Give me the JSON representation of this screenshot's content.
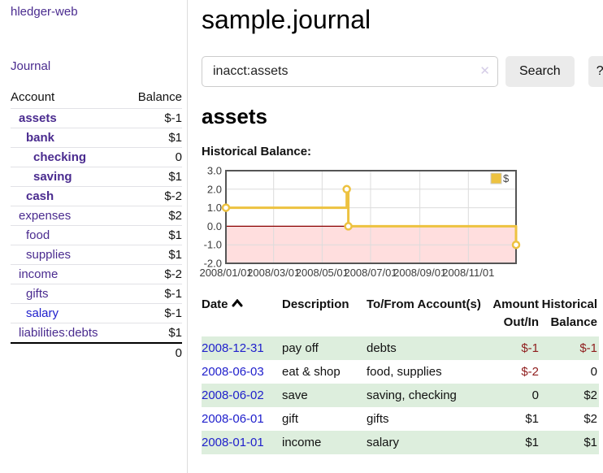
{
  "sidebar": {
    "brand": "hledger-web",
    "journal_link": "Journal",
    "accounts_table": {
      "headers": [
        "Account",
        "Balance"
      ],
      "rows": [
        {
          "account": "assets",
          "balance": "$-1",
          "indent": 1,
          "bold": true,
          "balance_tone": "negative-strong",
          "link_tone": "purple"
        },
        {
          "account": "bank",
          "balance": "$1",
          "indent": 2,
          "bold": true,
          "balance_tone": "normal",
          "link_tone": "purple"
        },
        {
          "account": "checking",
          "balance": "0",
          "indent": 3,
          "bold": true,
          "balance_tone": "normal",
          "link_tone": "purple"
        },
        {
          "account": "saving",
          "balance": "$1",
          "indent": 3,
          "bold": true,
          "balance_tone": "normal",
          "link_tone": "purple"
        },
        {
          "account": "cash",
          "balance": "$-2",
          "indent": 2,
          "bold": true,
          "balance_tone": "negative-strong",
          "link_tone": "purple"
        },
        {
          "account": "expenses",
          "balance": "$2",
          "indent": 1,
          "bold": false,
          "balance_tone": "normal",
          "link_tone": "purple"
        },
        {
          "account": "food",
          "balance": "$1",
          "indent": 2,
          "bold": false,
          "balance_tone": "normal",
          "link_tone": "purple"
        },
        {
          "account": "supplies",
          "balance": "$1",
          "indent": 2,
          "bold": false,
          "balance_tone": "normal",
          "link_tone": "purple"
        },
        {
          "account": "income",
          "balance": "$-2",
          "indent": 1,
          "bold": false,
          "balance_tone": "negative-soft",
          "link_tone": "purple"
        },
        {
          "account": "gifts",
          "balance": "$-1",
          "indent": 2,
          "bold": false,
          "balance_tone": "negative-soft",
          "link_tone": "purple"
        },
        {
          "account": "salary",
          "balance": "$-1",
          "indent": 2,
          "bold": false,
          "balance_tone": "negative-soft",
          "link_tone": "blue"
        },
        {
          "account": "liabilities:debts",
          "balance": "$1",
          "indent": 1,
          "bold": false,
          "balance_tone": "normal",
          "link_tone": "purple"
        }
      ],
      "total": "0"
    }
  },
  "main": {
    "title": "sample.journal",
    "search": {
      "value": "inacct:assets",
      "button_label": "Search",
      "help_label": "?"
    },
    "account_heading": "assets",
    "chart_title": "Historical Balance:"
  },
  "chart_data": {
    "type": "line",
    "step": true,
    "title": "Historical Balance:",
    "x_range": [
      "2008-01-01",
      "2008-12-31"
    ],
    "ylim": [
      -2,
      3
    ],
    "y_ticks": [
      3.0,
      2.0,
      1.0,
      0.0,
      -1.0,
      -2.0
    ],
    "x_ticks": [
      {
        "date": "2008-01-01",
        "label": "2008/01/01"
      },
      {
        "date": "2008-03-01",
        "label": "2008/03/01"
      },
      {
        "date": "2008-05-01",
        "label": "2008/05/01"
      },
      {
        "date": "2008-07-01",
        "label": "2008/07/01"
      },
      {
        "date": "2008-09-01",
        "label": "2008/09/01"
      },
      {
        "date": "2008-11-01",
        "label": "2008/11/01"
      }
    ],
    "series": [
      {
        "name": "$",
        "color": "#edc240",
        "points": [
          {
            "date": "2008-01-01",
            "value": 1
          },
          {
            "date": "2008-06-01",
            "value": 2
          },
          {
            "date": "2008-06-03",
            "value": 0
          },
          {
            "date": "2008-12-31",
            "value": -1
          }
        ]
      }
    ],
    "grid": true,
    "legend_position": "top-right",
    "negative_region_fill": "#ffdede",
    "zero_line_color": "#8b0000",
    "border_color": "#555555",
    "grid_color": "#dcdcdc"
  },
  "register": {
    "headers": [
      "Date",
      "Description",
      "To/From Account(s)",
      "Amount Out/In",
      "Historical Balance"
    ],
    "rows": [
      {
        "date": "2008-12-31",
        "description": "pay off",
        "accounts": "debts",
        "amount": "$-1",
        "balance": "$-1",
        "amount_tone": "negative-strong",
        "balance_tone": "negative-strong"
      },
      {
        "date": "2008-06-03",
        "description": "eat & shop",
        "accounts": "food, supplies",
        "amount": "$-2",
        "balance": "0",
        "amount_tone": "negative-strong",
        "balance_tone": "normal"
      },
      {
        "date": "2008-06-02",
        "description": "save",
        "accounts": "saving, checking",
        "amount": "0",
        "balance": "$2",
        "amount_tone": "normal",
        "balance_tone": "normal"
      },
      {
        "date": "2008-06-01",
        "description": "gift",
        "accounts": "gifts",
        "amount": "$1",
        "balance": "$2",
        "amount_tone": "normal",
        "balance_tone": "normal"
      },
      {
        "date": "2008-01-01",
        "description": "income",
        "accounts": "salary",
        "amount": "$1",
        "balance": "$1",
        "amount_tone": "normal",
        "balance_tone": "normal"
      }
    ]
  },
  "icons": {
    "clear": "✕",
    "sort_ascending": "chevron-up"
  },
  "colors": {
    "link_purple": "#4a2b8f",
    "link_blue": "#2020cc",
    "negative_strong": "#8f1d1d",
    "negative_soft": "#c99595",
    "row_stripe_green": "#ddeedd",
    "series_yellow": "#edc240",
    "button_gray": "#ebebeb"
  }
}
